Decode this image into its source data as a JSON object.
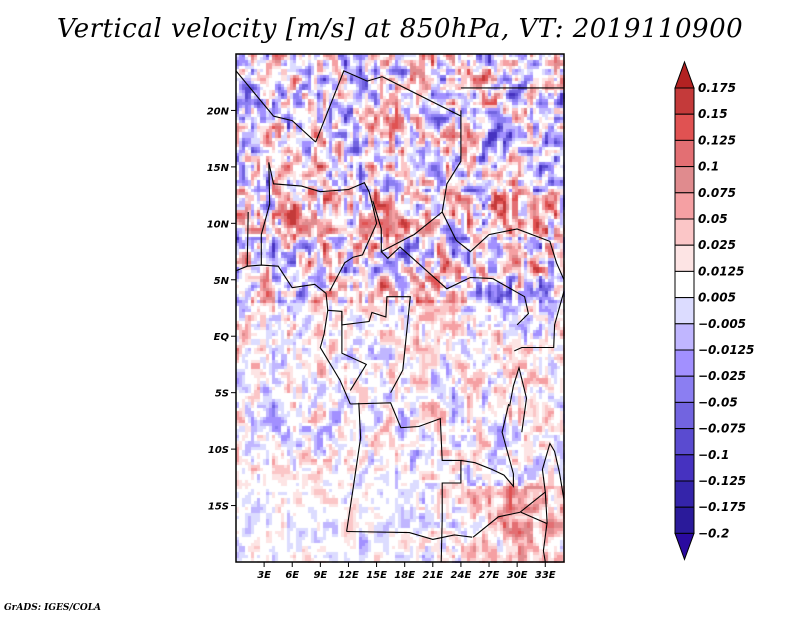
{
  "chart_data": {
    "type": "heatmap",
    "title": "Vertical velocity [m/s] at 850hPa, VT: 2019110900",
    "variable": "Vertical velocity",
    "units": "m/s",
    "level": "850hPa",
    "valid_time": "2019110900",
    "xlabel": "",
    "ylabel": "",
    "x_range_deg_east": [
      0,
      35
    ],
    "y_range_deg_north": [
      -20,
      25
    ],
    "x_ticks": [
      {
        "value": 3,
        "label": "3E"
      },
      {
        "value": 6,
        "label": "6E"
      },
      {
        "value": 9,
        "label": "9E"
      },
      {
        "value": 12,
        "label": "12E"
      },
      {
        "value": 15,
        "label": "15E"
      },
      {
        "value": 18,
        "label": "18E"
      },
      {
        "value": 21,
        "label": "21E"
      },
      {
        "value": 24,
        "label": "24E"
      },
      {
        "value": 27,
        "label": "27E"
      },
      {
        "value": 30,
        "label": "30E"
      },
      {
        "value": 33,
        "label": "33E"
      }
    ],
    "y_ticks": [
      {
        "value": 20,
        "label": "20N"
      },
      {
        "value": 15,
        "label": "15N"
      },
      {
        "value": 10,
        "label": "10N"
      },
      {
        "value": 5,
        "label": "5N"
      },
      {
        "value": 0,
        "label": "EQ"
      },
      {
        "value": -5,
        "label": "5S"
      },
      {
        "value": -10,
        "label": "10S"
      },
      {
        "value": -15,
        "label": "15S"
      }
    ],
    "grid": false,
    "colorbar": {
      "placement": "right",
      "extend": "both",
      "levels": [
        "0.175",
        "0.15",
        "0.125",
        "0.1",
        "0.075",
        "0.05",
        "0.025",
        "0.0125",
        "0.005",
        "-0.005",
        "-0.0125",
        "-0.025",
        "-0.05",
        "-0.075",
        "-0.1",
        "-0.125",
        "-0.175",
        "-0.2"
      ],
      "colors": [
        "#b22222",
        "#c43a3a",
        "#e05252",
        "#e36f73",
        "#e08b8e",
        "#f5a0a3",
        "#fbc6c7",
        "#fde4e4",
        "#ffffff",
        "#dcdcff",
        "#c0b6ff",
        "#a290ff",
        "#8b7ef2",
        "#7264e0",
        "#5a4bd0",
        "#4632c0",
        "#3424aa",
        "#2a1a9a"
      ],
      "max_extend_color": "#b22222",
      "min_extend_color": "#2a0aa0"
    },
    "field_description": "Mottled small-scale pattern of updrafts (red) and downdrafts (blue) over central Africa; strongest upward motion band near 10-12N and over the southeast (Zambia/Malawi); weakest values near 15-17S, 15-18E."
  },
  "footer": "GrADS: IGES/COLA"
}
